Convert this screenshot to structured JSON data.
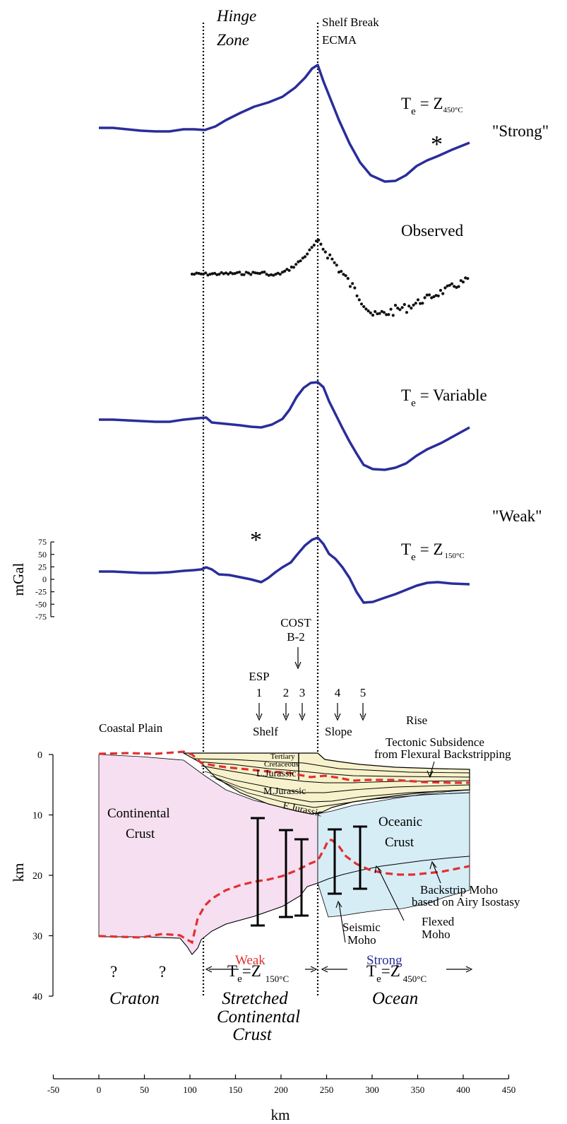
{
  "colors": {
    "blue": "#2a2d9a",
    "red": "#e03030",
    "continental_fill": "#f5dff0",
    "oceanic_fill": "#d7edf6",
    "sediment_fill": "#f7f2cc",
    "black": "#000000"
  },
  "zones": {
    "hinge_1": "Hinge",
    "hinge_2": "Zone",
    "shelf_break_1": "Shelf Break",
    "shelf_break_2": "ECMA"
  },
  "profiles": {
    "strong": {
      "te_label": "T",
      "te_sub": "e",
      "te_eq": "= Z",
      "te_temp": "450°C",
      "quote": "\"Strong\"",
      "star": "*"
    },
    "observed": {
      "label": "Observed"
    },
    "variable": {
      "te_label": "T",
      "te_sub": "e",
      "te_eq": "= Variable"
    },
    "weak": {
      "te_label": "T",
      "te_sub": "e",
      "te_eq": "= Z",
      "te_temp": "150°C",
      "quote": "\"Weak\"",
      "star": "*"
    }
  },
  "gravity_axis": {
    "ylabel": "mGal",
    "ticks": [
      75,
      50,
      25,
      0,
      -25,
      -50,
      -75
    ]
  },
  "wells": {
    "cost_1": "COST",
    "cost_2": "B-2",
    "esp": "ESP",
    "numbers": [
      "1",
      "2",
      "3",
      "4",
      "5"
    ]
  },
  "physiography": {
    "coastal_plain": "Coastal Plain",
    "shelf": "Shelf",
    "slope": "Slope",
    "rise": "Rise"
  },
  "section_labels": {
    "tertiary": "Tertiary",
    "cretaceous": "Cretaceous",
    "ljurassic": "L.Jurassic",
    "mjurassic": "M.Jurassic",
    "ejurassic": "E.Jurassic",
    "continental_1": "Continental",
    "continental_2": "Crust",
    "oceanic_1": "Oceanic",
    "oceanic_2": "Crust",
    "tectonic_1": "Tectonic Subsidence",
    "tectonic_2": "from Flexural Backstripping",
    "backstrip_1": "Backstrip Moho",
    "backstrip_2": "based on Airy Isostasy",
    "flexed_1": "Flexed",
    "flexed_2": "Moho",
    "seismic_1": "Seismic",
    "seismic_2": "Moho",
    "weak": "Weak",
    "strong": "Strong"
  },
  "te_bottom": {
    "left_te": "T",
    "left_sub": "e",
    "left_eq": "=Z",
    "left_temp": "150°C",
    "right_te": "T",
    "right_sub": "e",
    "right_eq": "=Z",
    "right_temp": "450°C"
  },
  "regions": {
    "q1": "?",
    "q2": "?",
    "craton": "Craton",
    "stretched_1": "Stretched",
    "stretched_2": "Continental",
    "stretched_3": "Crust",
    "ocean": "Ocean"
  },
  "depth_axis": {
    "ylabel": "km",
    "ticks": [
      0,
      10,
      20,
      30,
      40
    ]
  },
  "x_axis": {
    "xlabel": "km",
    "ticks": [
      -50,
      0,
      50,
      100,
      150,
      200,
      250,
      300,
      350,
      400,
      450
    ]
  }
}
